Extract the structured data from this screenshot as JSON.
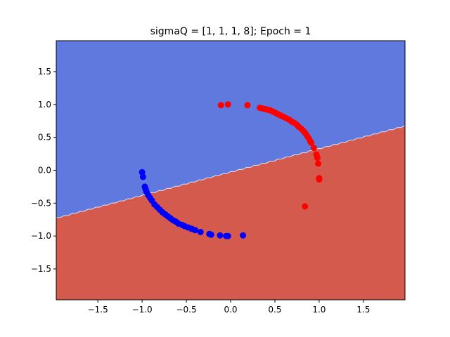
{
  "chart_data": {
    "type": "scatter",
    "title": "sigmaQ = [1, 1, 1, 8]; Epoch = 1",
    "xlabel": "",
    "ylabel": "",
    "xlim": [
      -1.97,
      1.97
    ],
    "ylim": [
      -1.97,
      1.97
    ],
    "grid": false,
    "xticks": [
      -1.5,
      -1.0,
      -0.5,
      0.0,
      0.5,
      1.0,
      1.5
    ],
    "xtick_labels": [
      "−1.5",
      "−1.0",
      "−0.5",
      "0.0",
      "0.5",
      "1.0",
      "1.5"
    ],
    "yticks": [
      1.5,
      1.0,
      0.5,
      0.0,
      -0.5,
      -1.0,
      -1.5
    ],
    "ytick_labels": [
      "1.5",
      "1.0",
      "0.5",
      "0.0",
      "−0.5",
      "−1.0",
      "−1.5"
    ],
    "decision_boundary": {
      "x": [
        -1.97,
        1.97
      ],
      "y": [
        -0.72,
        0.68
      ],
      "upper_region_color": "#6079de",
      "lower_region_color": "#d45a4e"
    },
    "series": [
      {
        "name": "class red",
        "color": "#ff0000",
        "points": [
          [
            -0.11,
            0.99
          ],
          [
            -0.03,
            1.0
          ],
          [
            0.19,
            0.99
          ],
          [
            0.33,
            0.95
          ],
          [
            0.36,
            0.94
          ],
          [
            0.39,
            0.93
          ],
          [
            0.42,
            0.92
          ],
          [
            0.45,
            0.91
          ],
          [
            0.48,
            0.89
          ],
          [
            0.51,
            0.87
          ],
          [
            0.54,
            0.85
          ],
          [
            0.57,
            0.83
          ],
          [
            0.6,
            0.81
          ],
          [
            0.63,
            0.79
          ],
          [
            0.66,
            0.77
          ],
          [
            0.69,
            0.74
          ],
          [
            0.72,
            0.72
          ],
          [
            0.75,
            0.69
          ],
          [
            0.77,
            0.66
          ],
          [
            0.8,
            0.63
          ],
          [
            0.82,
            0.6
          ],
          [
            0.84,
            0.57
          ],
          [
            0.86,
            0.53
          ],
          [
            0.88,
            0.49
          ],
          [
            0.9,
            0.44
          ],
          [
            0.91,
            0.42
          ],
          [
            0.94,
            0.34
          ],
          [
            0.97,
            0.24
          ],
          [
            0.98,
            0.19
          ],
          [
            0.99,
            0.1
          ],
          [
            1.0,
            -0.12
          ],
          [
            1.0,
            -0.14
          ],
          [
            0.84,
            -0.55
          ]
        ]
      },
      {
        "name": "class blue",
        "color": "#0000ff",
        "points": [
          [
            -1.0,
            -0.03
          ],
          [
            -0.99,
            -0.1
          ],
          [
            -0.97,
            -0.25
          ],
          [
            -0.96,
            -0.29
          ],
          [
            -0.95,
            -0.33
          ],
          [
            -0.93,
            -0.38
          ],
          [
            -0.91,
            -0.42
          ],
          [
            -0.89,
            -0.46
          ],
          [
            -0.86,
            -0.52
          ],
          [
            -0.83,
            -0.56
          ],
          [
            -0.8,
            -0.6
          ],
          [
            -0.77,
            -0.64
          ],
          [
            -0.74,
            -0.67
          ],
          [
            -0.71,
            -0.7
          ],
          [
            -0.68,
            -0.73
          ],
          [
            -0.65,
            -0.76
          ],
          [
            -0.62,
            -0.78
          ],
          [
            -0.59,
            -0.81
          ],
          [
            -0.55,
            -0.83
          ],
          [
            -0.52,
            -0.85
          ],
          [
            -0.48,
            -0.87
          ],
          [
            -0.44,
            -0.89
          ],
          [
            -0.4,
            -0.91
          ],
          [
            -0.34,
            -0.94
          ],
          [
            -0.24,
            -0.97
          ],
          [
            -0.22,
            -0.98
          ],
          [
            -0.12,
            -0.99
          ],
          [
            -0.05,
            -1.0
          ],
          [
            -0.03,
            -1.0
          ],
          [
            0.14,
            -0.99
          ]
        ]
      }
    ]
  }
}
